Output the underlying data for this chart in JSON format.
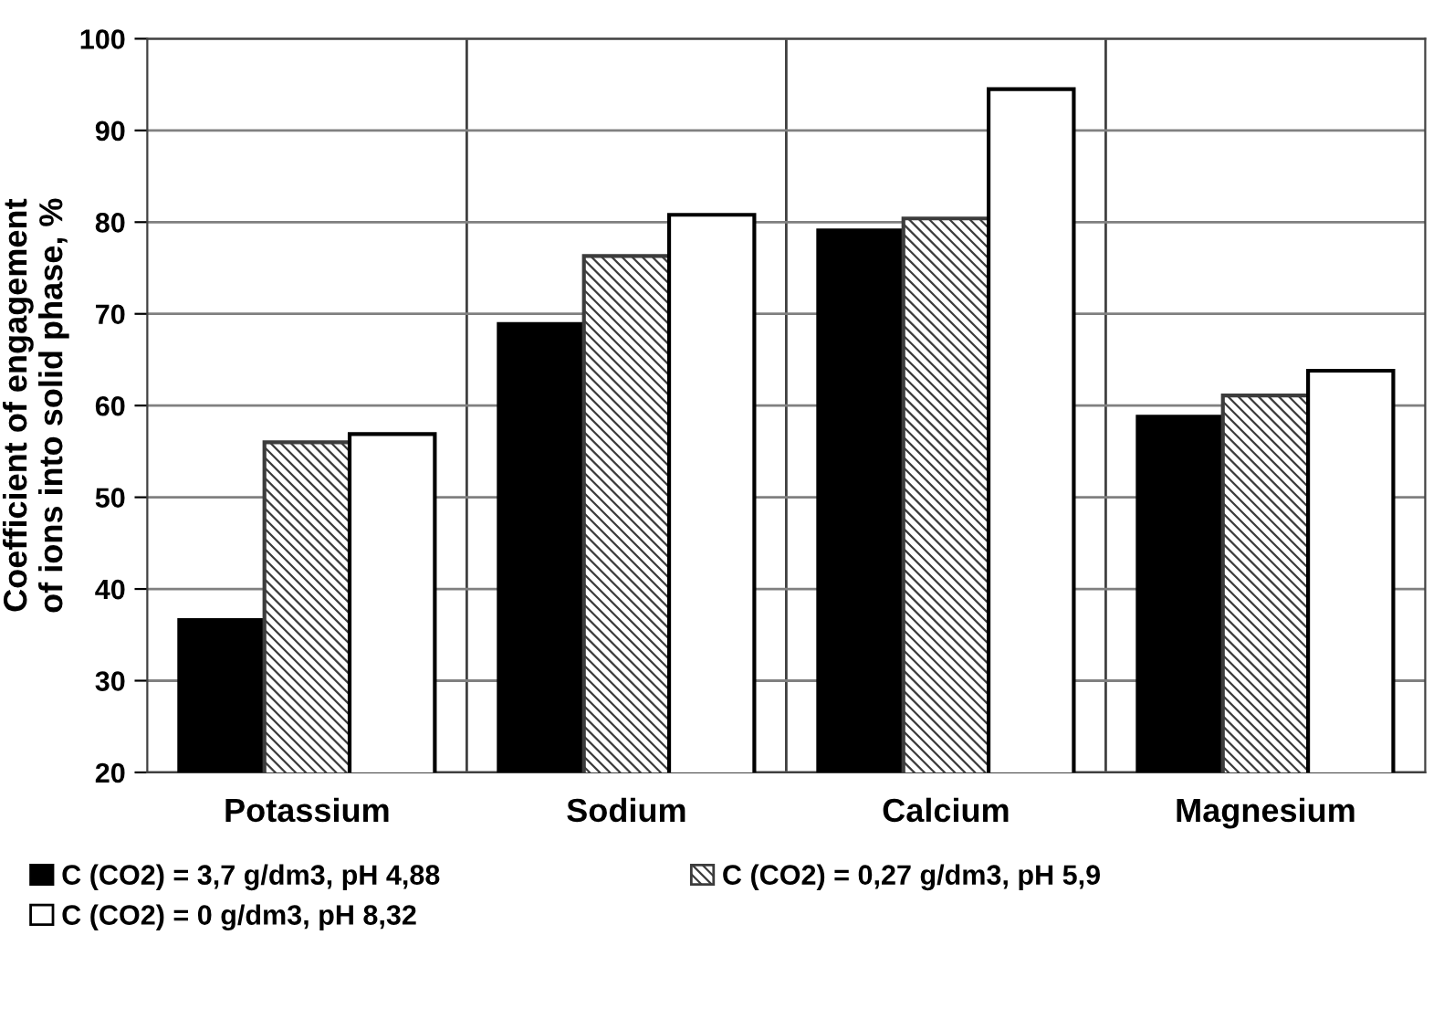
{
  "chart_data": {
    "type": "bar",
    "ylabel": "Coefficient of engagement\nof ions into solid phase, %",
    "categories": [
      "Potassium",
      "Sodium",
      "Calcium",
      "Magnesium"
    ],
    "series": [
      {
        "name": "C (CO2) = 3,7 g/dm3, pH 4,88",
        "color": "#000000",
        "values": [
          36.6,
          68.9,
          79.1,
          58.8
        ]
      },
      {
        "name": "C (CO2) = 0,27 g/dm3, pH 5,9",
        "color": "#3c3c3c",
        "values": [
          56.0,
          76.3,
          80.4,
          61.1
        ]
      },
      {
        "name": "C (CO2) = 0 g/dm3, pH 8,32",
        "color": "#ffffff",
        "values": [
          56.9,
          80.8,
          94.5,
          63.8
        ]
      }
    ],
    "ylim": [
      20,
      100
    ],
    "yticks": [
      20,
      30,
      40,
      50,
      60,
      70,
      80,
      90,
      100
    ],
    "grid": true,
    "legend": "bottom"
  }
}
